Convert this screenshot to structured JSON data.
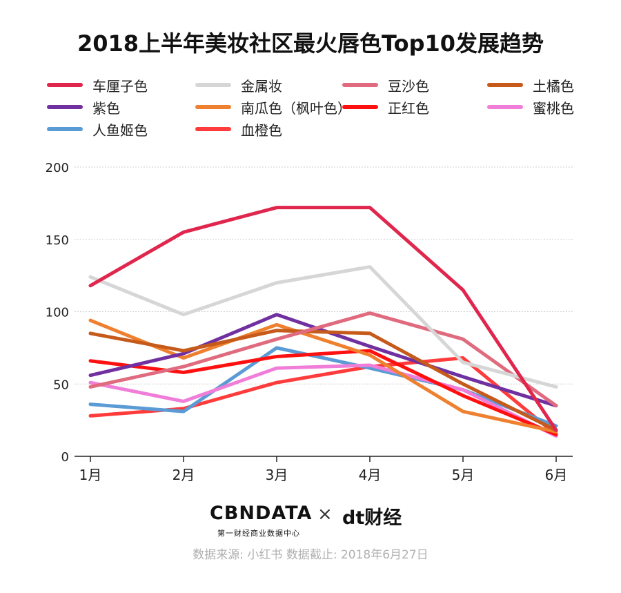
{
  "chart_data": {
    "type": "line",
    "title": "2018上半年美妆社区最火唇色Top10发展趋势",
    "xlabel": "",
    "ylabel": "",
    "x": [
      "1月",
      "2月",
      "3月",
      "4月",
      "5月",
      "6月"
    ],
    "ylim": [
      0,
      200
    ],
    "yticks": [
      0,
      50,
      100,
      150,
      200
    ],
    "grid": true,
    "legend_position": "top",
    "series": [
      {
        "name": "车厘子色",
        "color": "#e0264d",
        "values": [
          118,
          155,
          172,
          172,
          115,
          18
        ]
      },
      {
        "name": "金属妆",
        "color": "#d6d6d6",
        "values": [
          124,
          98,
          120,
          131,
          65,
          48
        ]
      },
      {
        "name": "豆沙色",
        "color": "#e06a7e",
        "values": [
          48,
          62,
          81,
          99,
          81,
          35
        ]
      },
      {
        "name": "土橘色",
        "color": "#c55a1a",
        "values": [
          85,
          73,
          87,
          85,
          50,
          18
        ]
      },
      {
        "name": "紫色",
        "color": "#7030a0",
        "values": [
          56,
          71,
          98,
          76,
          55,
          35
        ]
      },
      {
        "name": "南瓜色（枫叶色）",
        "color": "#ee8030",
        "values": [
          94,
          68,
          91,
          70,
          31,
          17
        ]
      },
      {
        "name": "正红色",
        "color": "#ff1010",
        "values": [
          66,
          58,
          69,
          73,
          42,
          15
        ]
      },
      {
        "name": "蜜桃色",
        "color": "#f07ed8",
        "values": [
          51,
          38,
          61,
          63,
          46,
          14
        ]
      },
      {
        "name": "人鱼姬色",
        "color": "#5b9bd5",
        "values": [
          36,
          31,
          75,
          61,
          46,
          21
        ]
      },
      {
        "name": "血橙色",
        "color": "#ff3b3b",
        "values": [
          28,
          33,
          51,
          62,
          68,
          15
        ]
      }
    ]
  },
  "branding": {
    "cbn_logo": "CBNDATA",
    "cbn_subtitle": "第一财经商业数据中心",
    "times": "×",
    "dt_logo": "dt财经"
  },
  "source": "数据来源: 小红书 数据截止: 2018年6月27日"
}
